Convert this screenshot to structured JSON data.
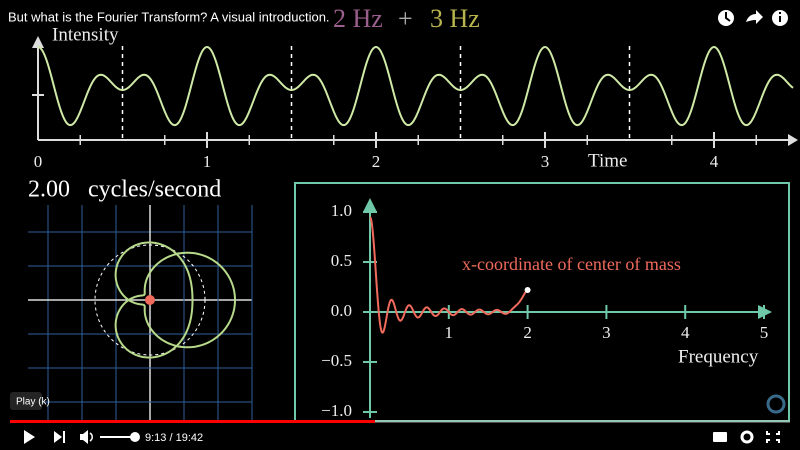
{
  "video": {
    "title": "But what is the Fourier Transform? A visual introduction."
  },
  "frame": {
    "heading": {
      "first": "2 Hz",
      "plus": "+",
      "second": "3 Hz"
    },
    "signal": {
      "y_label": "Intensity",
      "x_label": "Time",
      "x_ticks": [
        "0",
        "1",
        "2",
        "3",
        "4"
      ]
    },
    "winding": {
      "frequency": "2.00",
      "unit": "cycles/second"
    },
    "transform": {
      "annotation": "x-coordinate of center of mass",
      "x_label": "Frequency",
      "x_ticks": [
        "1",
        "2",
        "3",
        "4",
        "5"
      ],
      "y_ticks": [
        "1.0",
        "0.5",
        "0.0",
        "−0.5",
        "−1.0"
      ]
    }
  },
  "player": {
    "tooltip": "Play (k)",
    "time": "9:13 / 19:42"
  }
}
